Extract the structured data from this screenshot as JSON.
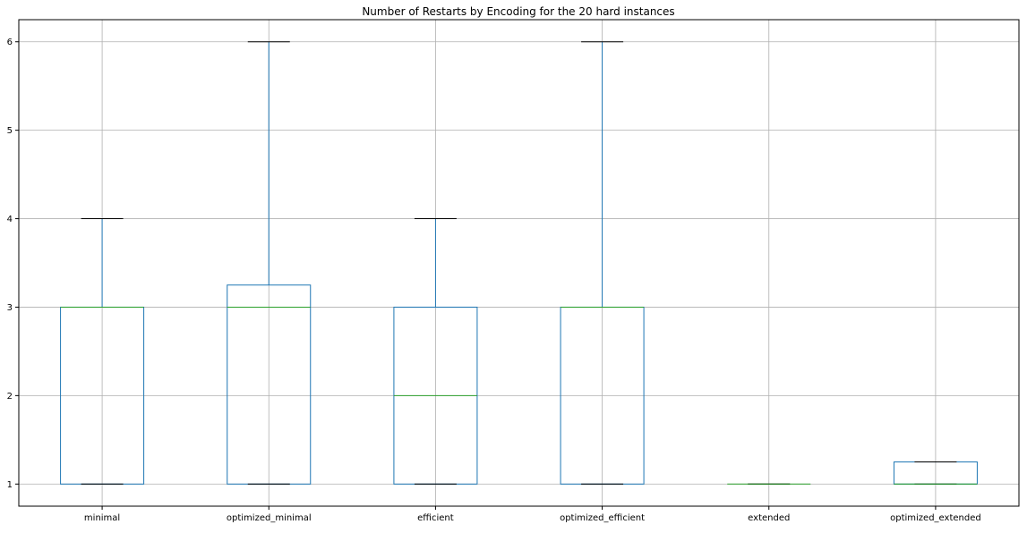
{
  "chart_data": {
    "type": "box",
    "title": "Number of Restarts by Encoding for the 20 hard instances",
    "xlabel": "",
    "ylabel": "",
    "ylim": [
      0.75,
      6.25
    ],
    "yticks": [
      1,
      2,
      3,
      4,
      5,
      6
    ],
    "grid": true,
    "colors": {
      "box": "#1f77b4",
      "median": "#2ca02c",
      "whisker": "#1f77b4",
      "cap": "#000000",
      "grid": "#b0b0b0",
      "axis": "#000000"
    },
    "categories": [
      "minimal",
      "optimized_minimal",
      "efficient",
      "optimized_efficient",
      "extended",
      "optimized_extended"
    ],
    "boxes": [
      {
        "name": "minimal",
        "whislo": 1,
        "q1": 1,
        "med": 3,
        "q3": 3,
        "whishi": 4
      },
      {
        "name": "optimized_minimal",
        "whislo": 1,
        "q1": 1,
        "med": 3,
        "q3": 3.25,
        "whishi": 6
      },
      {
        "name": "efficient",
        "whislo": 1,
        "q1": 1,
        "med": 2,
        "q3": 3,
        "whishi": 4
      },
      {
        "name": "optimized_efficient",
        "whislo": 1,
        "q1": 1,
        "med": 3,
        "q3": 3,
        "whishi": 6
      },
      {
        "name": "extended",
        "whislo": 1,
        "q1": 1,
        "med": 1,
        "q3": 1,
        "whishi": 1
      },
      {
        "name": "optimized_extended",
        "whislo": 1,
        "q1": 1,
        "med": 1,
        "q3": 1.25,
        "whishi": 1.25
      }
    ]
  }
}
